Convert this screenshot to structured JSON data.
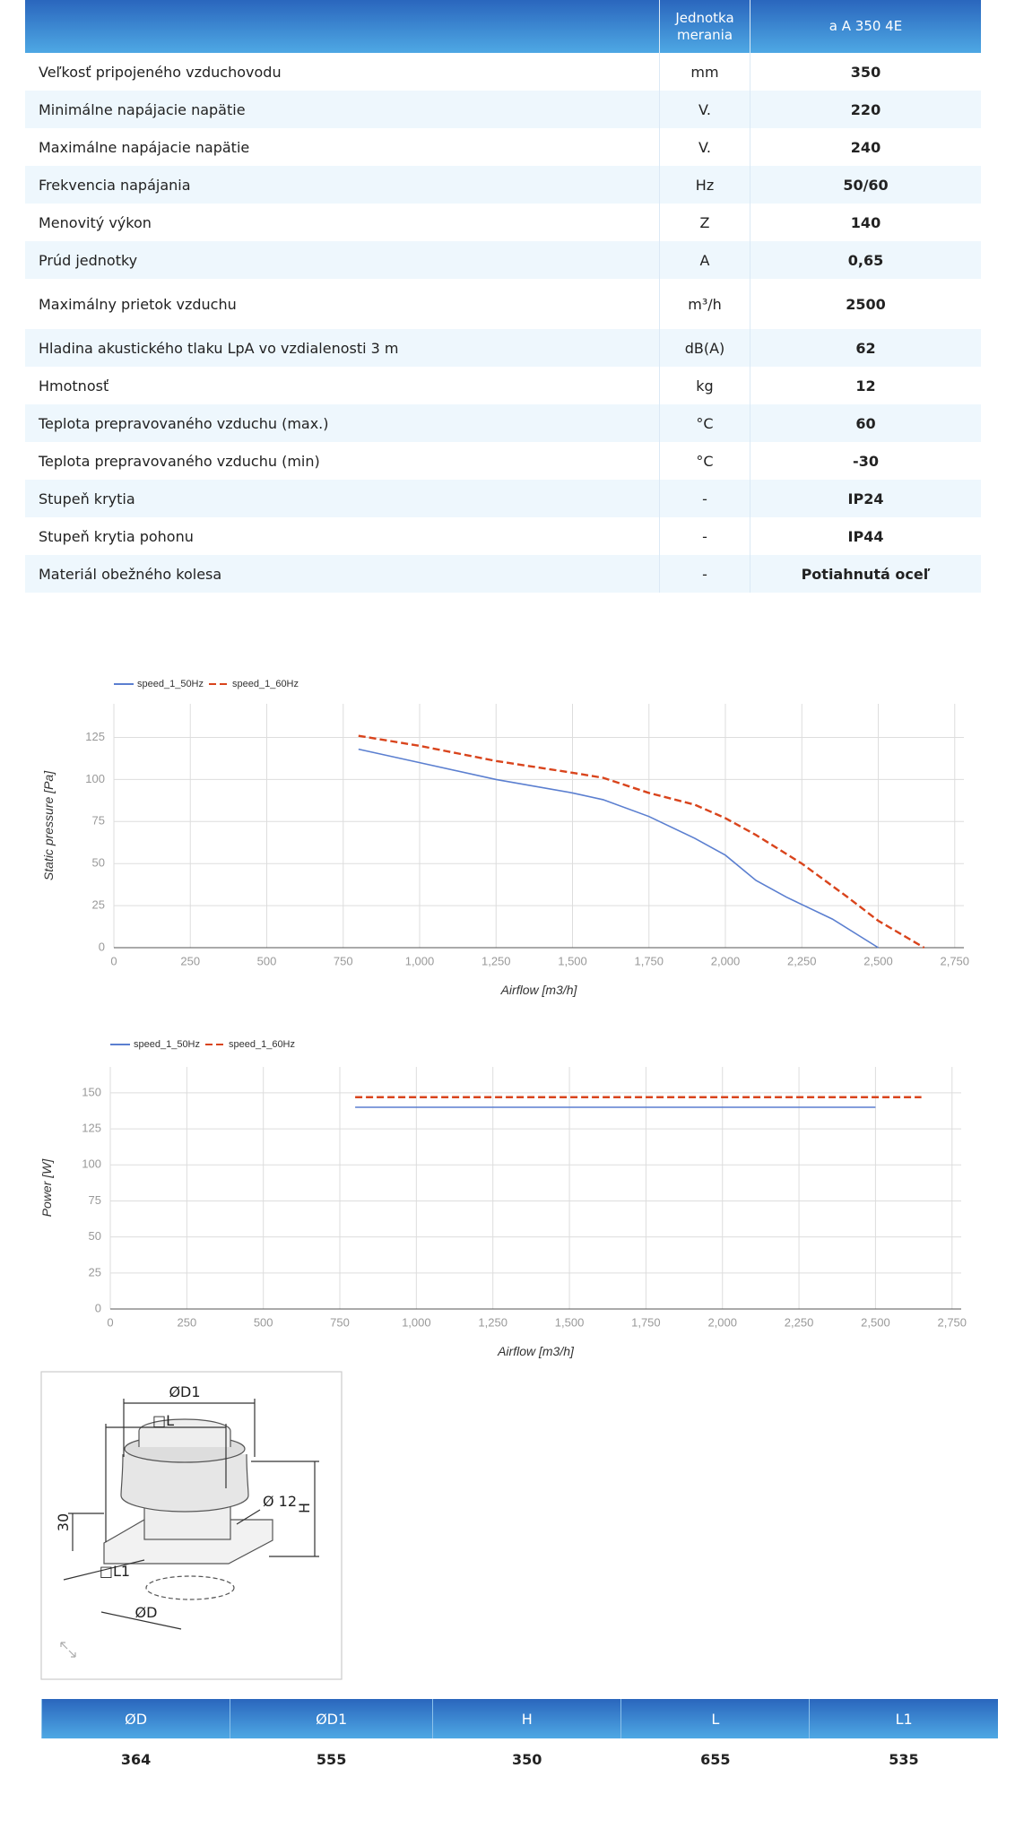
{
  "spec_table": {
    "header": {
      "unit": "Jednotka merania",
      "model": "a A 350 4E"
    },
    "rows": [
      [
        "Veľkosť pripojeného vzduchovodu",
        "mm",
        350
      ],
      [
        "Minimálne napájacie napätie",
        "V.",
        220
      ],
      [
        "Maximálne napájacie napätie",
        "V.",
        240
      ],
      [
        "Frekvencia napájania",
        "Hz",
        "50/60"
      ],
      [
        "Menovitý výkon",
        "Z",
        140
      ],
      [
        "Prúd jednotky",
        "A",
        "0,65"
      ],
      [
        "Maximálny prietok vzduchu",
        "m³/h",
        2500
      ],
      [
        "Hladina akustického tlaku LpA vo vzdialenosti 3 m",
        "dB(A)",
        62
      ],
      [
        "Hmotnosť",
        "kg",
        12
      ],
      [
        "Teplota prepravovaného vzduchu (max.)",
        "°C",
        60
      ],
      [
        "Teplota prepravovaného vzduchu (min)",
        "°C",
        -30
      ],
      [
        "Stupeň krytia",
        "-",
        "IP24"
      ],
      [
        "Stupeň krytia pohonu",
        "-",
        "IP44"
      ],
      [
        "Materiál obežného kolesa",
        "-",
        "Potiahnutá oceľ"
      ]
    ]
  },
  "chart_data": [
    {
      "type": "line",
      "x_label": "Airflow [m3/h]",
      "y_label": "Static pressure [Pa]",
      "xlim": [
        0,
        2780
      ],
      "ylim": [
        0,
        145
      ],
      "xticks": [
        0,
        250,
        500,
        750,
        {
          "value": 1000,
          "label": "1,000"
        },
        {
          "value": 1250,
          "label": "1,250"
        },
        {
          "value": 1500,
          "label": "1,500"
        },
        {
          "value": 1750,
          "label": "1,750"
        },
        {
          "value": 2000,
          "label": "2,000"
        },
        {
          "value": 2250,
          "label": "2,250"
        },
        {
          "value": 2500,
          "label": "2,500"
        },
        {
          "value": 2750,
          "label": "2,750"
        }
      ],
      "yticks": [
        0,
        25,
        50,
        75,
        100,
        125
      ],
      "grid": true,
      "legend": "top-left",
      "series": [
        {
          "name": "speed_1_50Hz",
          "color": "#5b7fd0",
          "line_style": "solid",
          "x": [
            800,
            1000,
            1250,
            1500,
            1600,
            1750,
            1900,
            2000,
            2100,
            2200,
            2350,
            2500
          ],
          "values": [
            118,
            110,
            100,
            92,
            88,
            78,
            65,
            55,
            40,
            30,
            17,
            0
          ]
        },
        {
          "name": "speed_1_60Hz",
          "color": "#d9441c",
          "line_style": "dashed",
          "x": [
            800,
            1000,
            1250,
            1500,
            1600,
            1750,
            1900,
            2000,
            2100,
            2250,
            2400,
            2500,
            2650
          ],
          "values": [
            126,
            120,
            111,
            104,
            101,
            92,
            85,
            77,
            67,
            50,
            30,
            16,
            0
          ]
        }
      ]
    },
    {
      "type": "line",
      "x_label": "Airflow [m3/h]",
      "y_label": "Power [W]",
      "xlim": [
        0,
        2780
      ],
      "ylim": [
        0,
        168
      ],
      "xticks": [
        0,
        250,
        500,
        750,
        {
          "value": 1000,
          "label": "1,000"
        },
        {
          "value": 1250,
          "label": "1,250"
        },
        {
          "value": 1500,
          "label": "1,500"
        },
        {
          "value": 1750,
          "label": "1,750"
        },
        {
          "value": 2000,
          "label": "2,000"
        },
        {
          "value": 2250,
          "label": "2,250"
        },
        {
          "value": 2500,
          "label": "2,500"
        },
        {
          "value": 2750,
          "label": "2,750"
        }
      ],
      "yticks": [
        0,
        25,
        50,
        75,
        100,
        125,
        150
      ],
      "grid": true,
      "legend": "top-left",
      "series": [
        {
          "name": "speed_1_50Hz",
          "color": "#5b7fd0",
          "line_style": "solid",
          "x": [
            800,
            2500
          ],
          "values": [
            140,
            140
          ]
        },
        {
          "name": "speed_1_60Hz",
          "color": "#d9441c",
          "line_style": "dashed",
          "x": [
            800,
            2650
          ],
          "values": [
            147,
            147
          ]
        }
      ]
    }
  ],
  "diagram": {
    "labels": [
      "ØD1",
      "□L",
      "H",
      "Ø 12",
      "30",
      "□L1",
      "ØD"
    ]
  },
  "dimensions_table": {
    "headers": [
      "ØD",
      "ØD1",
      "H",
      "L",
      "L1"
    ],
    "values": [
      364,
      555,
      350,
      655,
      535
    ]
  }
}
